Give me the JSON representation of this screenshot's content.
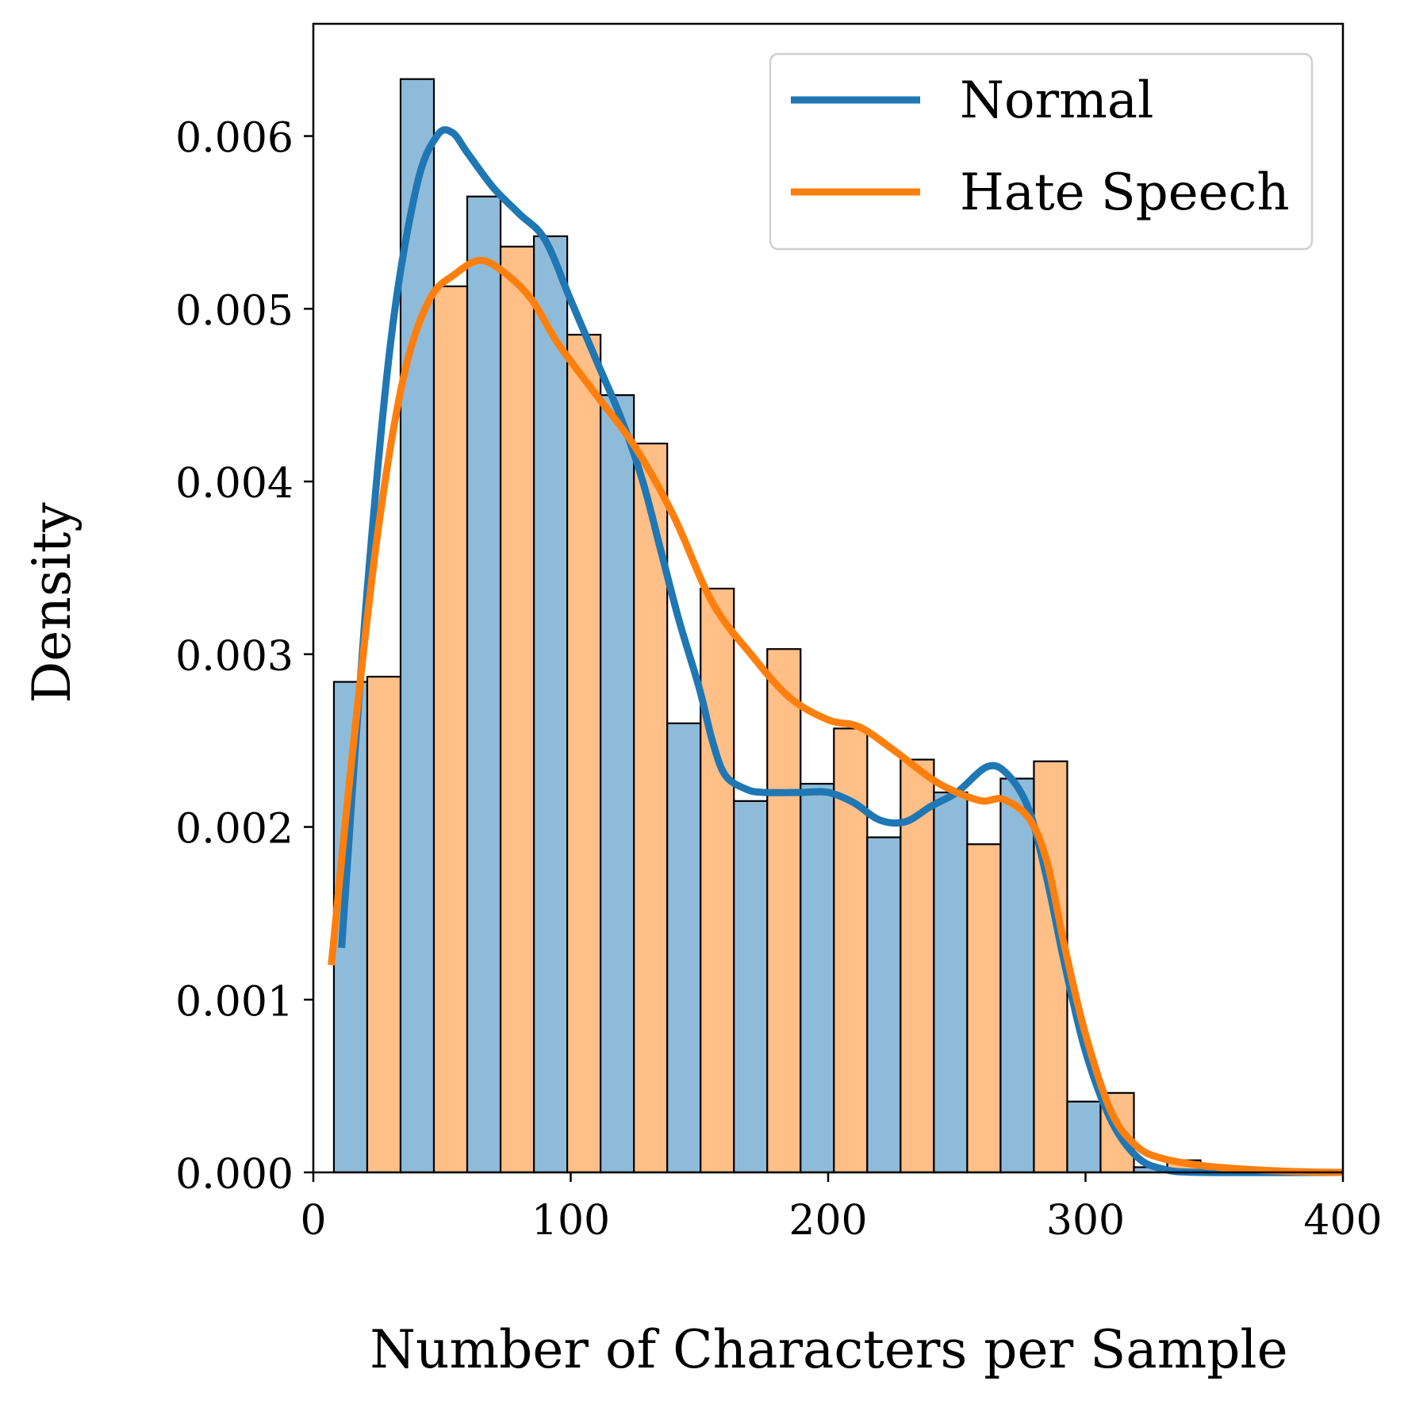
{
  "chart_data": {
    "type": "bar",
    "xlabel": "Number of Characters per Sample",
    "ylabel": "Density",
    "xlim": [
      0,
      400
    ],
    "ylim": [
      0,
      0.00665
    ],
    "xticks": [
      0,
      100,
      200,
      300,
      400
    ],
    "xtick_labels": [
      "0",
      "100",
      "200",
      "300",
      "400"
    ],
    "yticks": [
      0,
      0.001,
      0.002,
      0.003,
      0.004,
      0.005,
      0.006
    ],
    "ytick_labels": [
      "0.000",
      "0.001",
      "0.002",
      "0.003",
      "0.004",
      "0.005",
      "0.006"
    ],
    "grid": false,
    "legend_position": "top-right",
    "bin_start": 8,
    "bin_width": 25.9,
    "series": [
      {
        "name": "Normal",
        "fill_color": "#8fbbda",
        "line_color": "#1f77b4",
        "values": [
          0.00284,
          0.00633,
          0.00565,
          0.00542,
          0.0045,
          0.0026,
          0.00215,
          0.00225,
          0.00194,
          0.0022,
          0.00228,
          0.00041,
          3e-05,
          0.0,
          0.0
        ],
        "kde": [
          [
            11,
            0.0013
          ],
          [
            20,
            0.0032
          ],
          [
            30,
            0.0048
          ],
          [
            40,
            0.0057
          ],
          [
            48,
            0.006
          ],
          [
            54,
            0.00602
          ],
          [
            60,
            0.0059
          ],
          [
            70,
            0.0057
          ],
          [
            80,
            0.00555
          ],
          [
            90,
            0.0054
          ],
          [
            100,
            0.00505
          ],
          [
            110,
            0.0047
          ],
          [
            120,
            0.00435
          ],
          [
            128,
            0.004
          ],
          [
            135,
            0.0036
          ],
          [
            142,
            0.0032
          ],
          [
            150,
            0.0028
          ],
          [
            155,
            0.0025
          ],
          [
            160,
            0.0023
          ],
          [
            168,
            0.00222
          ],
          [
            175,
            0.0022
          ],
          [
            190,
            0.0022
          ],
          [
            200,
            0.0022
          ],
          [
            210,
            0.00214
          ],
          [
            220,
            0.00204
          ],
          [
            230,
            0.00203
          ],
          [
            240,
            0.00212
          ],
          [
            250,
            0.0022
          ],
          [
            262,
            0.00235
          ],
          [
            270,
            0.0023
          ],
          [
            278,
            0.0021
          ],
          [
            285,
            0.0017
          ],
          [
            292,
            0.0012
          ],
          [
            300,
            0.0007
          ],
          [
            310,
            0.0003
          ],
          [
            320,
            9e-05
          ],
          [
            330,
            2e-05
          ],
          [
            345,
            0.0
          ],
          [
            400,
            0.0
          ]
        ]
      },
      {
        "name": "Hate Speech",
        "fill_color": "#ffbf86",
        "line_color": "#ff7f0e",
        "values": [
          0.00287,
          0.00513,
          0.00536,
          0.00485,
          0.00422,
          0.00338,
          0.00303,
          0.00257,
          0.00239,
          0.0019,
          0.00238,
          0.00046,
          7e-05,
          1e-05,
          0.0
        ],
        "kde": [
          [
            7,
            0.0012
          ],
          [
            15,
            0.0024
          ],
          [
            25,
            0.0037
          ],
          [
            35,
            0.0046
          ],
          [
            45,
            0.00505
          ],
          [
            55,
            0.0052
          ],
          [
            65,
            0.00528
          ],
          [
            75,
            0.0052
          ],
          [
            85,
            0.00505
          ],
          [
            95,
            0.0048
          ],
          [
            110,
            0.0045
          ],
          [
            125,
            0.0042
          ],
          [
            140,
            0.0038
          ],
          [
            155,
            0.0033
          ],
          [
            170,
            0.003
          ],
          [
            185,
            0.00275
          ],
          [
            200,
            0.00262
          ],
          [
            212,
            0.00258
          ],
          [
            225,
            0.00245
          ],
          [
            240,
            0.00228
          ],
          [
            250,
            0.0022
          ],
          [
            260,
            0.00215
          ],
          [
            268,
            0.00216
          ],
          [
            278,
            0.00205
          ],
          [
            285,
            0.0018
          ],
          [
            292,
            0.0013
          ],
          [
            300,
            0.0008
          ],
          [
            310,
            0.00035
          ],
          [
            320,
            0.00015
          ],
          [
            330,
            8e-05
          ],
          [
            345,
            4e-05
          ],
          [
            360,
            2e-05
          ],
          [
            380,
            5e-06
          ],
          [
            400,
            0.0
          ]
        ]
      }
    ]
  }
}
